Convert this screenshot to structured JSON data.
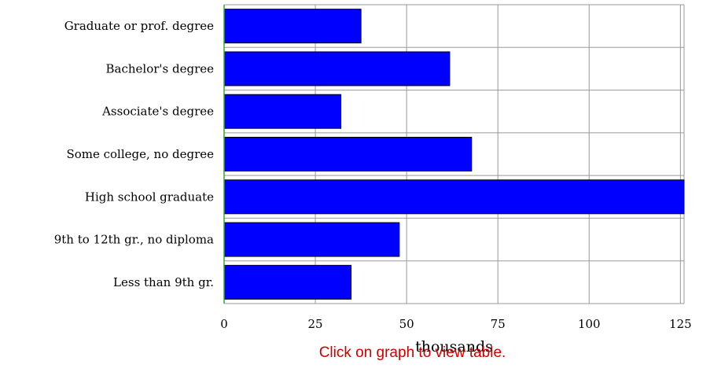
{
  "chart_data": {
    "type": "bar",
    "orientation": "horizontal",
    "categories": [
      "Graduate or prof. degree",
      "Bachelor's degree",
      "Associate's degree",
      "Some college, no degree",
      "High school graduate",
      "9th to 12th gr., no diploma",
      "Less than 9th gr."
    ],
    "values": [
      37.5,
      61.8,
      32,
      67.8,
      127,
      48,
      34.8
    ],
    "xlabel": "thousands",
    "xlim": [
      0,
      126
    ],
    "xticks": [
      "0",
      "25",
      "50",
      "75",
      "100",
      "125"
    ],
    "grid": true,
    "bar_color": "#0000ff",
    "grid_color": "#999999"
  },
  "note": "Click on graph to view table.",
  "note_color": "#cc0000"
}
